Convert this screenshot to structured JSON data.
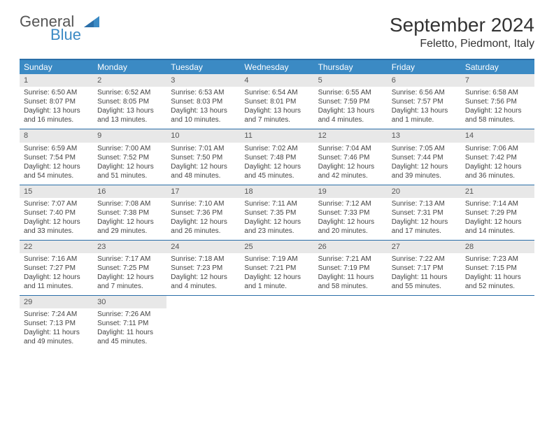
{
  "brand": {
    "general": "General",
    "blue": "Blue"
  },
  "title": "September 2024",
  "location": "Feletto, Piedmont, Italy",
  "colors": {
    "header_bg": "#3b8ac4",
    "border": "#2a6ea8",
    "daynum_bg": "#e8e8e8",
    "text": "#444444"
  },
  "day_names": [
    "Sunday",
    "Monday",
    "Tuesday",
    "Wednesday",
    "Thursday",
    "Friday",
    "Saturday"
  ],
  "weeks": [
    [
      {
        "n": "1",
        "sr": "Sunrise: 6:50 AM",
        "ss": "Sunset: 8:07 PM",
        "d1": "Daylight: 13 hours",
        "d2": "and 16 minutes."
      },
      {
        "n": "2",
        "sr": "Sunrise: 6:52 AM",
        "ss": "Sunset: 8:05 PM",
        "d1": "Daylight: 13 hours",
        "d2": "and 13 minutes."
      },
      {
        "n": "3",
        "sr": "Sunrise: 6:53 AM",
        "ss": "Sunset: 8:03 PM",
        "d1": "Daylight: 13 hours",
        "d2": "and 10 minutes."
      },
      {
        "n": "4",
        "sr": "Sunrise: 6:54 AM",
        "ss": "Sunset: 8:01 PM",
        "d1": "Daylight: 13 hours",
        "d2": "and 7 minutes."
      },
      {
        "n": "5",
        "sr": "Sunrise: 6:55 AM",
        "ss": "Sunset: 7:59 PM",
        "d1": "Daylight: 13 hours",
        "d2": "and 4 minutes."
      },
      {
        "n": "6",
        "sr": "Sunrise: 6:56 AM",
        "ss": "Sunset: 7:57 PM",
        "d1": "Daylight: 13 hours",
        "d2": "and 1 minute."
      },
      {
        "n": "7",
        "sr": "Sunrise: 6:58 AM",
        "ss": "Sunset: 7:56 PM",
        "d1": "Daylight: 12 hours",
        "d2": "and 58 minutes."
      }
    ],
    [
      {
        "n": "8",
        "sr": "Sunrise: 6:59 AM",
        "ss": "Sunset: 7:54 PM",
        "d1": "Daylight: 12 hours",
        "d2": "and 54 minutes."
      },
      {
        "n": "9",
        "sr": "Sunrise: 7:00 AM",
        "ss": "Sunset: 7:52 PM",
        "d1": "Daylight: 12 hours",
        "d2": "and 51 minutes."
      },
      {
        "n": "10",
        "sr": "Sunrise: 7:01 AM",
        "ss": "Sunset: 7:50 PM",
        "d1": "Daylight: 12 hours",
        "d2": "and 48 minutes."
      },
      {
        "n": "11",
        "sr": "Sunrise: 7:02 AM",
        "ss": "Sunset: 7:48 PM",
        "d1": "Daylight: 12 hours",
        "d2": "and 45 minutes."
      },
      {
        "n": "12",
        "sr": "Sunrise: 7:04 AM",
        "ss": "Sunset: 7:46 PM",
        "d1": "Daylight: 12 hours",
        "d2": "and 42 minutes."
      },
      {
        "n": "13",
        "sr": "Sunrise: 7:05 AM",
        "ss": "Sunset: 7:44 PM",
        "d1": "Daylight: 12 hours",
        "d2": "and 39 minutes."
      },
      {
        "n": "14",
        "sr": "Sunrise: 7:06 AM",
        "ss": "Sunset: 7:42 PM",
        "d1": "Daylight: 12 hours",
        "d2": "and 36 minutes."
      }
    ],
    [
      {
        "n": "15",
        "sr": "Sunrise: 7:07 AM",
        "ss": "Sunset: 7:40 PM",
        "d1": "Daylight: 12 hours",
        "d2": "and 33 minutes."
      },
      {
        "n": "16",
        "sr": "Sunrise: 7:08 AM",
        "ss": "Sunset: 7:38 PM",
        "d1": "Daylight: 12 hours",
        "d2": "and 29 minutes."
      },
      {
        "n": "17",
        "sr": "Sunrise: 7:10 AM",
        "ss": "Sunset: 7:36 PM",
        "d1": "Daylight: 12 hours",
        "d2": "and 26 minutes."
      },
      {
        "n": "18",
        "sr": "Sunrise: 7:11 AM",
        "ss": "Sunset: 7:35 PM",
        "d1": "Daylight: 12 hours",
        "d2": "and 23 minutes."
      },
      {
        "n": "19",
        "sr": "Sunrise: 7:12 AM",
        "ss": "Sunset: 7:33 PM",
        "d1": "Daylight: 12 hours",
        "d2": "and 20 minutes."
      },
      {
        "n": "20",
        "sr": "Sunrise: 7:13 AM",
        "ss": "Sunset: 7:31 PM",
        "d1": "Daylight: 12 hours",
        "d2": "and 17 minutes."
      },
      {
        "n": "21",
        "sr": "Sunrise: 7:14 AM",
        "ss": "Sunset: 7:29 PM",
        "d1": "Daylight: 12 hours",
        "d2": "and 14 minutes."
      }
    ],
    [
      {
        "n": "22",
        "sr": "Sunrise: 7:16 AM",
        "ss": "Sunset: 7:27 PM",
        "d1": "Daylight: 12 hours",
        "d2": "and 11 minutes."
      },
      {
        "n": "23",
        "sr": "Sunrise: 7:17 AM",
        "ss": "Sunset: 7:25 PM",
        "d1": "Daylight: 12 hours",
        "d2": "and 7 minutes."
      },
      {
        "n": "24",
        "sr": "Sunrise: 7:18 AM",
        "ss": "Sunset: 7:23 PM",
        "d1": "Daylight: 12 hours",
        "d2": "and 4 minutes."
      },
      {
        "n": "25",
        "sr": "Sunrise: 7:19 AM",
        "ss": "Sunset: 7:21 PM",
        "d1": "Daylight: 12 hours",
        "d2": "and 1 minute."
      },
      {
        "n": "26",
        "sr": "Sunrise: 7:21 AM",
        "ss": "Sunset: 7:19 PM",
        "d1": "Daylight: 11 hours",
        "d2": "and 58 minutes."
      },
      {
        "n": "27",
        "sr": "Sunrise: 7:22 AM",
        "ss": "Sunset: 7:17 PM",
        "d1": "Daylight: 11 hours",
        "d2": "and 55 minutes."
      },
      {
        "n": "28",
        "sr": "Sunrise: 7:23 AM",
        "ss": "Sunset: 7:15 PM",
        "d1": "Daylight: 11 hours",
        "d2": "and 52 minutes."
      }
    ],
    [
      {
        "n": "29",
        "sr": "Sunrise: 7:24 AM",
        "ss": "Sunset: 7:13 PM",
        "d1": "Daylight: 11 hours",
        "d2": "and 49 minutes."
      },
      {
        "n": "30",
        "sr": "Sunrise: 7:26 AM",
        "ss": "Sunset: 7:11 PM",
        "d1": "Daylight: 11 hours",
        "d2": "and 45 minutes."
      },
      {
        "empty": true
      },
      {
        "empty": true
      },
      {
        "empty": true
      },
      {
        "empty": true
      },
      {
        "empty": true
      }
    ]
  ]
}
